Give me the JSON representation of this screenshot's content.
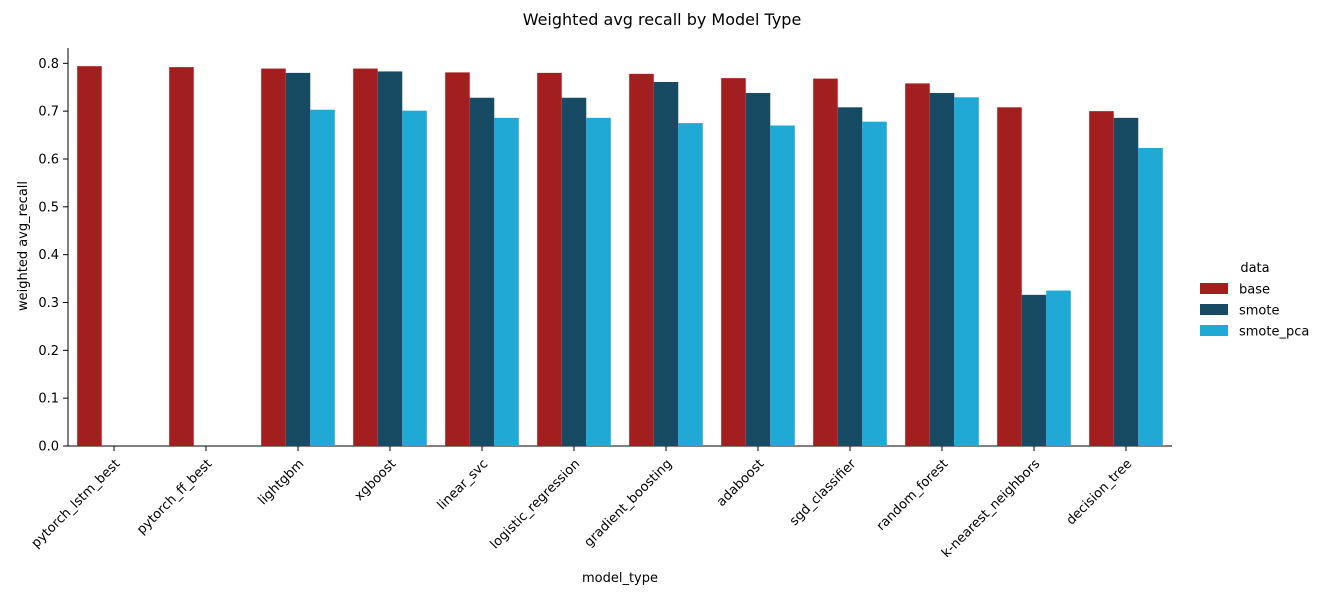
{
  "chart_data": {
    "type": "bar",
    "title": "Weighted avg recall by Model Type",
    "xlabel": "model_type",
    "ylabel": "weighted avg_recall",
    "ylim": [
      0,
      0.832
    ],
    "yticks": [
      "0.0",
      "0.1",
      "0.2",
      "0.3",
      "0.4",
      "0.5",
      "0.6",
      "0.7",
      "0.8"
    ],
    "categories": [
      "pytorch_lstm_best",
      "pytorch_ff_best",
      "lightgbm",
      "xgboost",
      "linear_svc",
      "logistic_regression",
      "gradient_boosting",
      "adaboost",
      "sgd_classifier",
      "random_forest",
      "k-nearest_neighbors",
      "decision_tree"
    ],
    "legend": {
      "title": "data",
      "placement": "right"
    },
    "grid": false,
    "series": [
      {
        "name": "base",
        "color": "#a31f1f",
        "values": [
          0.794,
          0.792,
          0.789,
          0.789,
          0.781,
          0.78,
          0.778,
          0.769,
          0.768,
          0.758,
          0.708,
          0.7
        ]
      },
      {
        "name": "smote",
        "color": "#174a63",
        "values": [
          null,
          null,
          0.78,
          0.783,
          0.728,
          0.728,
          0.761,
          0.738,
          0.708,
          0.738,
          0.316,
          0.686
        ]
      },
      {
        "name": "smote_pca",
        "color": "#1fa9d4",
        "values": [
          null,
          null,
          0.703,
          0.701,
          0.686,
          0.686,
          0.675,
          0.67,
          0.678,
          0.729,
          0.325,
          0.623
        ]
      }
    ]
  }
}
